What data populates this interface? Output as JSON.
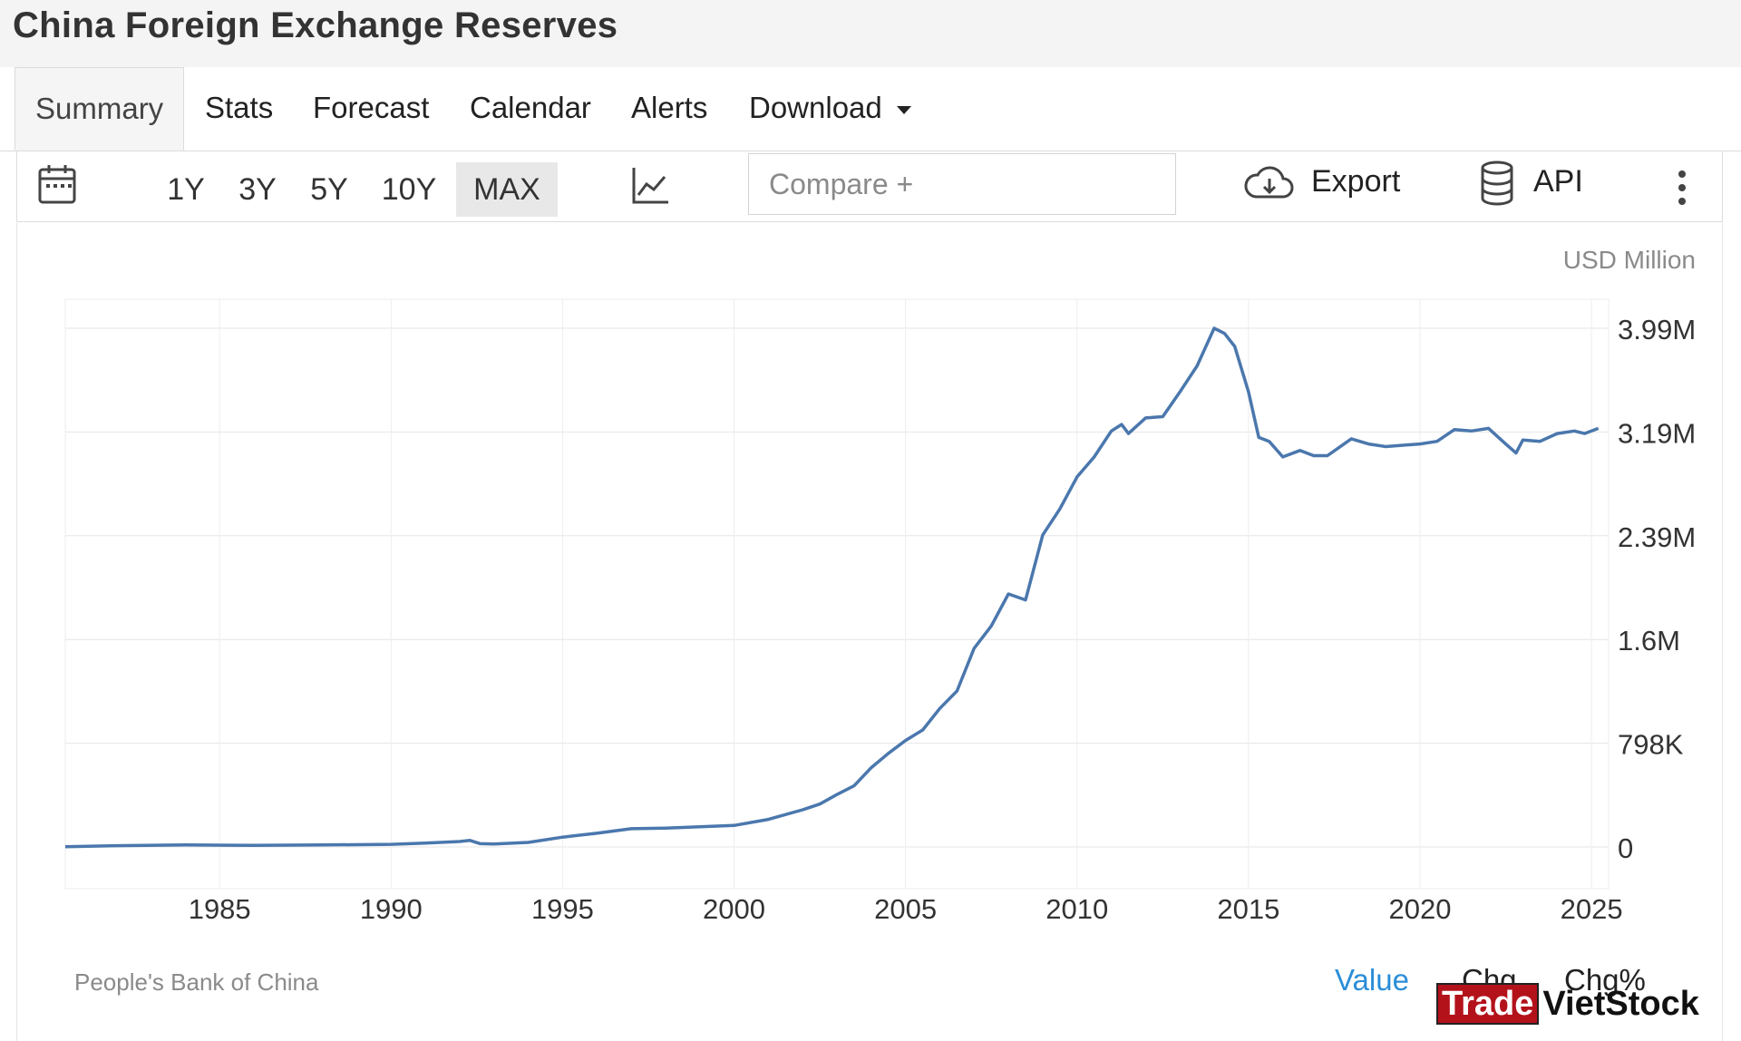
{
  "page": {
    "title": "China Foreign Exchange Reserves"
  },
  "tabs": [
    {
      "label": "Summary",
      "active": true
    },
    {
      "label": "Stats"
    },
    {
      "label": "Forecast"
    },
    {
      "label": "Calendar"
    },
    {
      "label": "Alerts"
    },
    {
      "label": "Download",
      "dropdown": true
    }
  ],
  "toolbar": {
    "calendar_icon": "calendar-icon",
    "ranges": [
      "1Y",
      "3Y",
      "5Y",
      "10Y",
      "MAX"
    ],
    "active_range": "MAX",
    "chart_type_icon": "line-chart-icon",
    "compare_placeholder": "Compare +",
    "export_label": "Export",
    "export_icon": "cloud-download-icon",
    "api_label": "API",
    "api_icon": "database-icon",
    "more_icon": "vertical-dots-icon"
  },
  "chart_data": {
    "type": "line",
    "unit_label": "USD Million",
    "x_ticks": [
      "1985",
      "1990",
      "1995",
      "2000",
      "2005",
      "2010",
      "2015",
      "2020",
      "2025"
    ],
    "y_ticks": [
      "0",
      "798K",
      "1.6M",
      "2.39M",
      "3.19M",
      "3.99M"
    ],
    "xlim": [
      1980.5,
      2025.5
    ],
    "ylim": [
      0,
      3990000
    ],
    "grid": true,
    "line_color": "#4a77ad",
    "series": [
      {
        "x": [
          1980.5,
          1982,
          1984,
          1986,
          1988,
          1990,
          1991,
          1992,
          1992.3,
          1992.6,
          1993,
          1994,
          1995,
          1996,
          1997,
          1998,
          1999,
          2000,
          2001,
          2002,
          2002.5,
          2003,
          2003.5,
          2004,
          2004.5,
          2005,
          2005.5,
          2006,
          2006.5,
          2007,
          2007.5,
          2008,
          2008.5,
          2009,
          2009.5,
          2010,
          2010.5,
          2011,
          2011.3,
          2011.5,
          2012,
          2012.5,
          2013,
          2013.5,
          2014,
          2014.3,
          2014.6,
          2015,
          2015.3,
          2015.6,
          2016,
          2016.5,
          2016.9,
          2017.3,
          2018,
          2018.5,
          2019,
          2019.5,
          2020,
          2020.5,
          2021,
          2021.5,
          2022,
          2022.5,
          2022.8,
          2023,
          2023.5,
          2024,
          2024.5,
          2024.8,
          2025.2
        ],
        "y": [
          2000,
          10000,
          15000,
          12000,
          15000,
          20000,
          30000,
          42000,
          50000,
          25000,
          22000,
          35000,
          75000,
          105000,
          140000,
          145000,
          155000,
          165000,
          212000,
          286000,
          330000,
          403000,
          470000,
          610000,
          720000,
          819000,
          900000,
          1066000,
          1200000,
          1528000,
          1700000,
          1946000,
          1900000,
          2399000,
          2600000,
          2847000,
          3000000,
          3200000,
          3250000,
          3180000,
          3300000,
          3310000,
          3500000,
          3700000,
          3990000,
          3950000,
          3850000,
          3500000,
          3150000,
          3120000,
          3000000,
          3050000,
          3010000,
          3010000,
          3140000,
          3100000,
          3080000,
          3090000,
          3100000,
          3120000,
          3210000,
          3200000,
          3220000,
          3100000,
          3030000,
          3130000,
          3120000,
          3180000,
          3200000,
          3180000,
          3220000
        ]
      }
    ]
  },
  "footer": {
    "source": "People's Bank of China",
    "links": [
      "Value",
      "Chg",
      "Chg%"
    ],
    "value_color": "#2a8dd8"
  },
  "logo": {
    "part1": "Trade",
    "part2": "VietStock"
  }
}
